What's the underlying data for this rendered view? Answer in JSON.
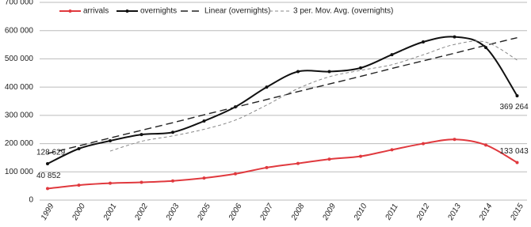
{
  "chart_data": {
    "type": "line",
    "categories": [
      "1999",
      "2000",
      "2001",
      "2002",
      "2003",
      "2005",
      "2006",
      "2007",
      "2008",
      "2009",
      "2010",
      "2011",
      "2012",
      "2013",
      "2014",
      "2015"
    ],
    "ylim": [
      0,
      700000
    ],
    "yticks": [
      {
        "value": 0,
        "label": "0"
      },
      {
        "value": 100000,
        "label": "100 000"
      },
      {
        "value": 200000,
        "label": "200 000"
      },
      {
        "value": 300000,
        "label": "300 000"
      },
      {
        "value": 400000,
        "label": "400 000"
      },
      {
        "value": 500000,
        "label": "500 000"
      },
      {
        "value": 600000,
        "label": "600 000"
      },
      {
        "value": 700000,
        "label": "700 000"
      }
    ],
    "grid": true,
    "legend": "top",
    "series": [
      {
        "name": "arrivals",
        "color": "#e0393e",
        "style": "solid",
        "markers": true,
        "values": [
          40852,
          53000,
          60000,
          63000,
          68000,
          78000,
          93000,
          115000,
          130000,
          145000,
          155000,
          178000,
          200000,
          215000,
          195000,
          133043
        ],
        "value_labels": [
          "40 852",
          null,
          null,
          null,
          null,
          null,
          null,
          null,
          null,
          null,
          null,
          null,
          null,
          null,
          null,
          "133 043"
        ]
      },
      {
        "name": "overnights",
        "color": "#111111",
        "style": "solid",
        "markers": true,
        "values": [
          128629,
          182000,
          210000,
          232000,
          240000,
          280000,
          330000,
          400000,
          455000,
          455000,
          468000,
          515000,
          560000,
          578000,
          540000,
          369264
        ],
        "value_labels": [
          "128 629",
          null,
          null,
          null,
          null,
          null,
          null,
          null,
          null,
          null,
          null,
          null,
          null,
          null,
          null,
          "369 264"
        ]
      },
      {
        "name": "Linear (overnights)",
        "color": "#222222",
        "style": "dashed",
        "markers": false,
        "values": [
          165000,
          192000,
          220000,
          247000,
          274000,
          302000,
          329000,
          356000,
          384000,
          411000,
          438000,
          466000,
          493000,
          520000,
          548000,
          575000
        ]
      },
      {
        "name": "3 per. Mov. Avg. (overnights)",
        "color": "#888888",
        "style": "dotted",
        "markers": false,
        "values": [
          null,
          null,
          173543,
          208000,
          227333,
          250667,
          283333,
          336667,
          395000,
          436667,
          459333,
          479333,
          514333,
          551000,
          559333,
          495754
        ]
      }
    ]
  }
}
